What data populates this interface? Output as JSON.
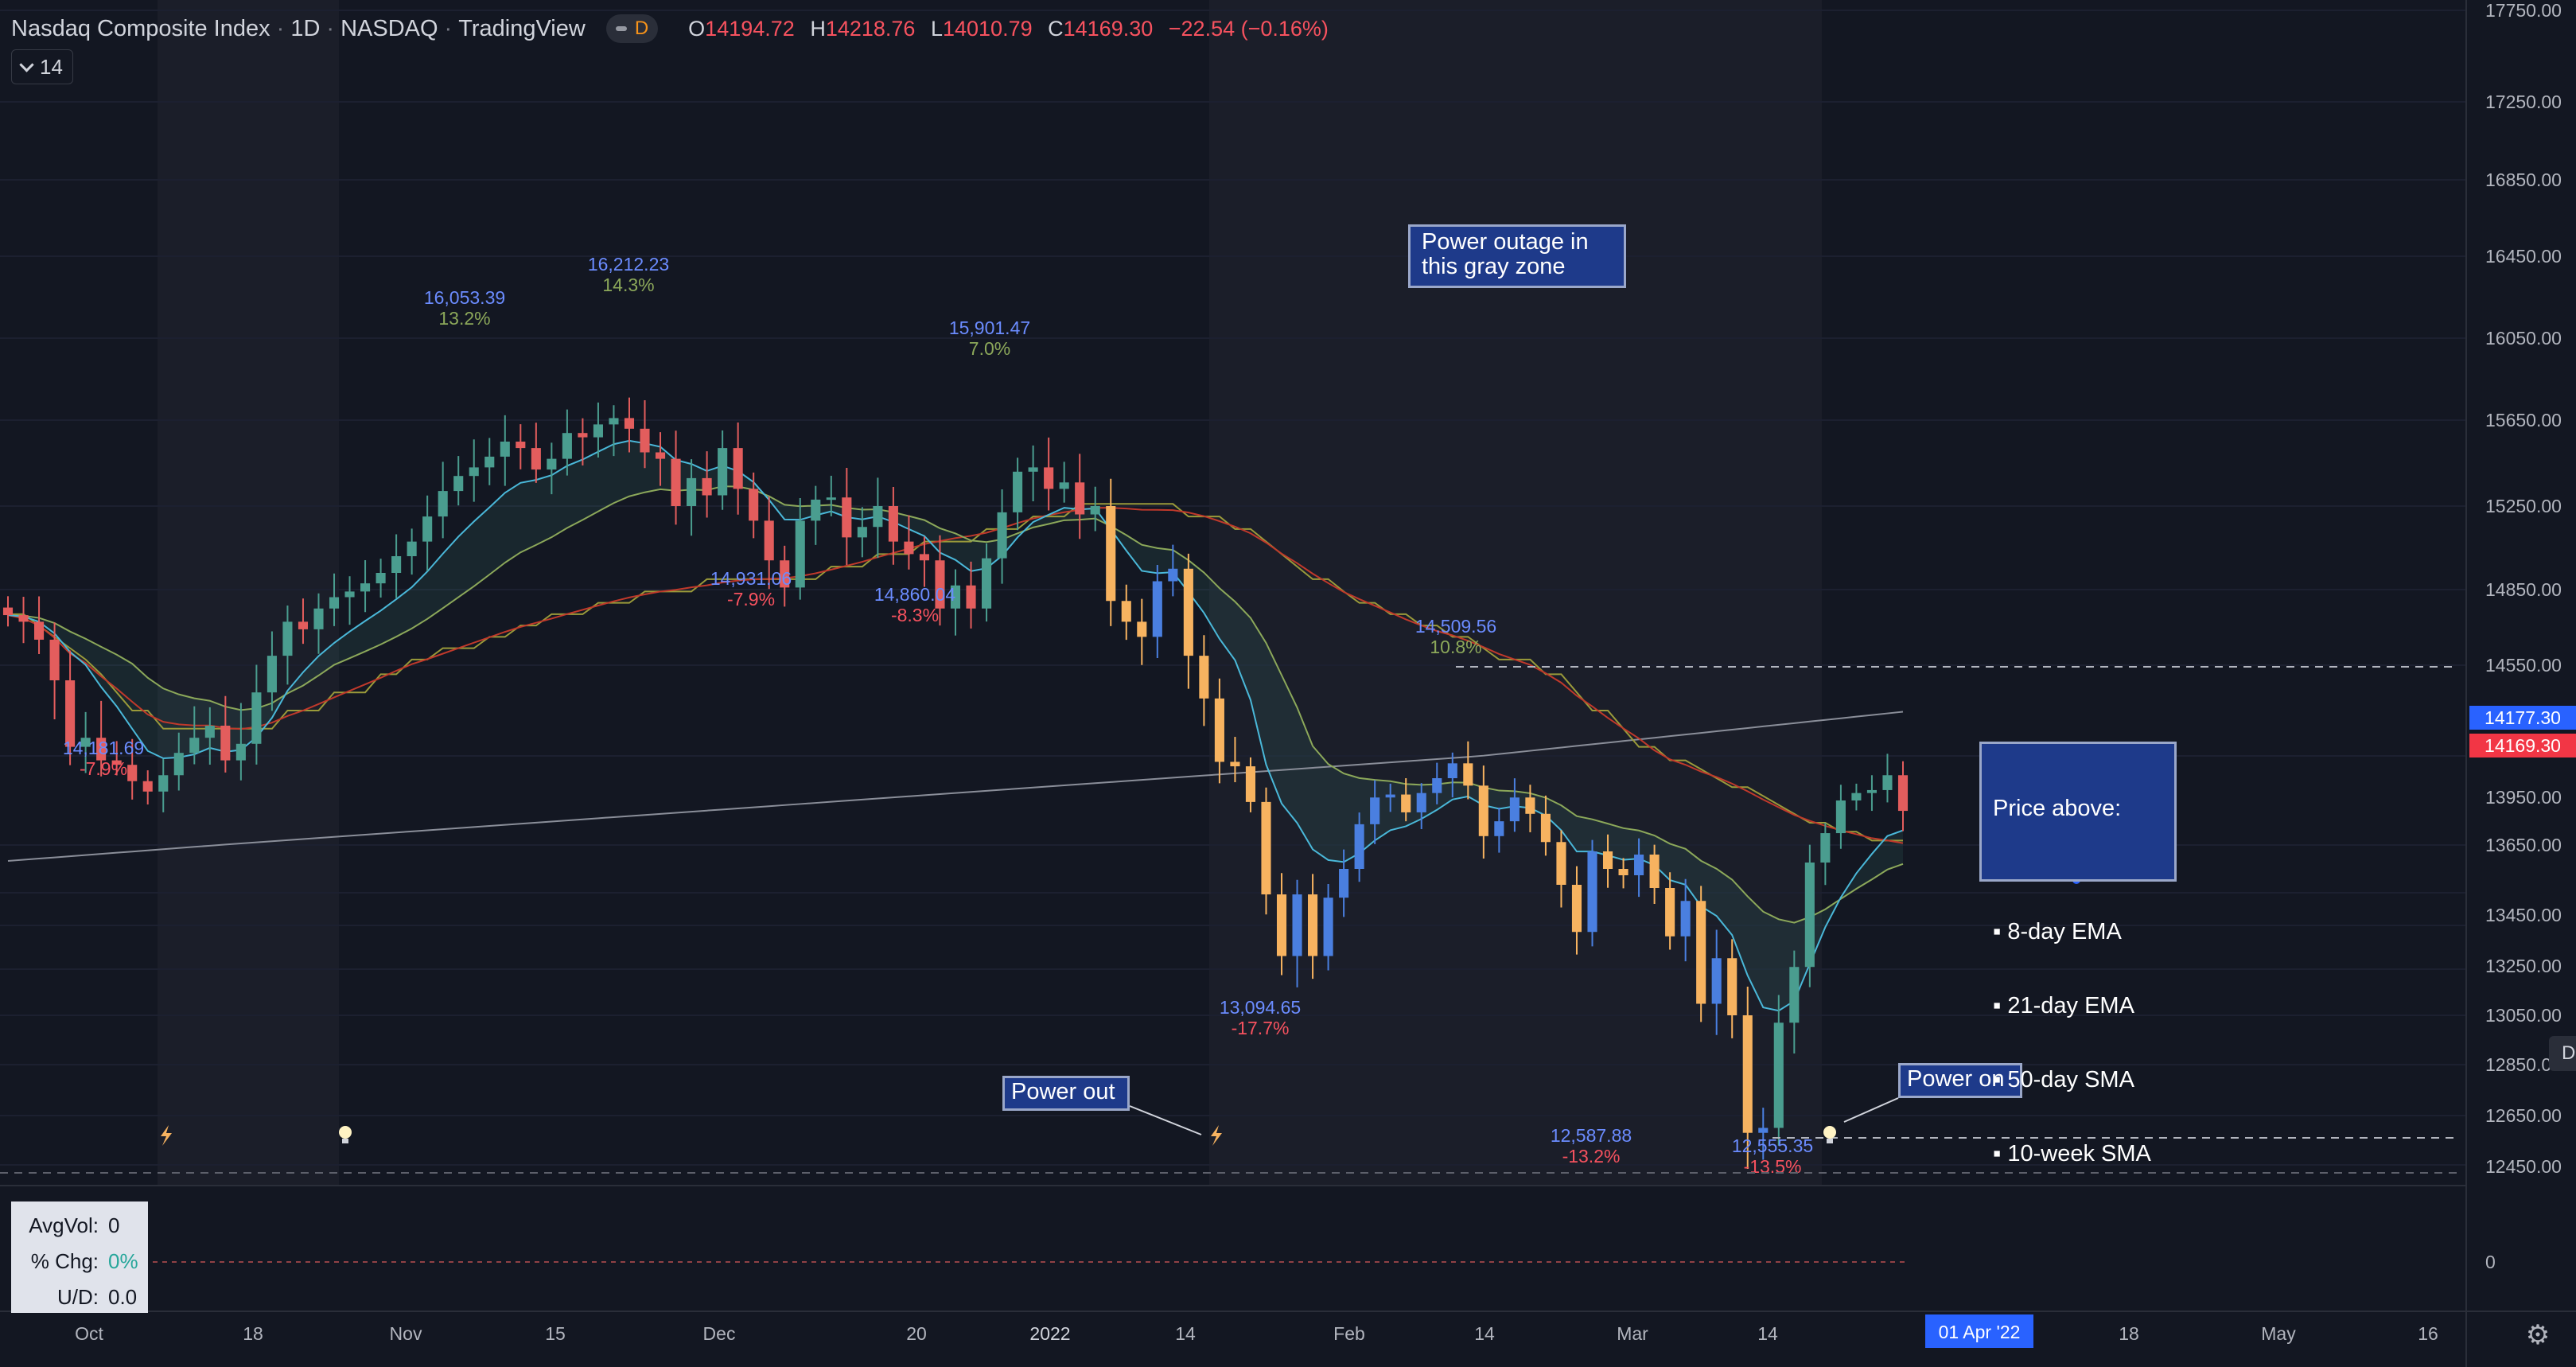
{
  "header": {
    "symbol": "Nasdaq Composite Index",
    "interval": "1D",
    "exchange": "NASDAQ",
    "source": "TradingView",
    "flag": "D",
    "o_label": "O",
    "o_value": "14194.72",
    "h_label": "H",
    "h_value": "14218.76",
    "l_label": "L",
    "l_value": "14010.79",
    "c_label": "C",
    "c_value": "14169.30",
    "change": "−22.54 (−0.16%)",
    "collapse_count": "14"
  },
  "colors": {
    "background": "#131722",
    "up_candle": "#4a9d8f",
    "down_candle": "#e35d5d",
    "blue_candle": "#4a7fe0",
    "orange_candle": "#f7b360",
    "ema8": "#4ab8d9",
    "ema21": "#8ca85a",
    "sma50": "#c0392b",
    "sma10w": "#9a9a3a",
    "sma200": "#8a8e99",
    "shade": "#1b1e29",
    "label_blue": "#6b8cff",
    "label_red": "#f7525f",
    "label_green": "#8ca85a",
    "note_bg": "#1e3a8a"
  },
  "annotations": {
    "outage_note": "Power outage in\nthis gray zone",
    "power_out": "Power out",
    "power_on": "Power on",
    "price_above_title": "Price above:",
    "price_above_items": [
      "8-day EMA",
      "21-day EMA",
      "50-day SMA",
      "10-week SMA"
    ]
  },
  "price_axis": {
    "ticks": [
      "17750.00",
      "17250.00",
      "16850.00",
      "16450.00",
      "16050.00",
      "15650.00",
      "15250.00",
      "14850.00",
      "14550.00",
      "13950.00",
      "13650.00",
      "13450.00",
      "13250.00",
      "13050.00",
      "12850.00",
      "12650.00",
      "12450.00"
    ],
    "last_price_1": "14177.30",
    "last_price_2": "14169.30",
    "volume_zero": "0",
    "dom": "DOM"
  },
  "time_axis": {
    "labels": [
      "Oct",
      "18",
      "Nov",
      "15",
      "Dec",
      "20",
      "2022",
      "14",
      "Feb",
      "14",
      "Mar",
      "14",
      "18",
      "May",
      "16"
    ],
    "cursor_label": "01 Apr '22"
  },
  "stats": {
    "avgvol_label": "AvgVol:",
    "avgvol_value": "0",
    "chg_label": "% Chg:",
    "chg_value": "0%",
    "ud_label": "U/D:",
    "ud_value": "0.0"
  },
  "chart_data": {
    "type": "candlestick",
    "title": "Nasdaq Composite Index",
    "ylim": [
      12400,
      17800
    ],
    "swing_labels": [
      {
        "price": "14,181.69",
        "pct": "-7.9%",
        "dir": "down"
      },
      {
        "price": "16,053.39",
        "pct": "13.2%",
        "dir": "up"
      },
      {
        "price": "16,212.23",
        "pct": "14.3%",
        "dir": "up"
      },
      {
        "price": "14,931.06",
        "pct": "-7.9%",
        "dir": "down"
      },
      {
        "price": "14,860.04",
        "pct": "-8.3%",
        "dir": "down"
      },
      {
        "price": "15,901.47",
        "pct": "7.0%",
        "dir": "up"
      },
      {
        "price": "13,094.65",
        "pct": "-17.7%",
        "dir": "down"
      },
      {
        "price": "14,509.56",
        "pct": "10.8%",
        "dir": "up"
      },
      {
        "price": "12,587.88",
        "pct": "-13.2%",
        "dir": "down"
      },
      {
        "price": "12,555.35",
        "pct": "-13.5%",
        "dir": "down"
      }
    ],
    "series": [
      {
        "name": "8-day EMA"
      },
      {
        "name": "21-day EMA"
      },
      {
        "name": "50-day SMA"
      },
      {
        "name": "10-week SMA"
      }
    ],
    "close": [
      15115,
      15080,
      14985,
      14800,
      14580,
      14610,
      14520,
      14490,
      14380,
      14310,
      14420,
      14560,
      14610,
      14650,
      14520,
      14590,
      14760,
      14900,
      15080,
      15040,
      15150,
      15210,
      15240,
      15280,
      15330,
      15410,
      15480,
      15600,
      15720,
      15790,
      15830,
      15880,
      15950,
      15920,
      15820,
      15870,
      15990,
      15970,
      16030,
      16060,
      16010,
      15900,
      15870,
      15650,
      15780,
      15700,
      15920,
      15730,
      15580,
      15390,
      15260,
      15580,
      15680,
      15690,
      15500,
      15550,
      15650,
      15480,
      15420,
      15390,
      15150,
      15270,
      15150,
      15400,
      15620,
      15810,
      15830,
      15730,
      15760,
      15610,
      15650,
      15190,
      15080,
      15000,
      15290,
      15350,
      14900,
      14740,
      14510,
      14480,
      14240,
      13640,
      13310,
      13640,
      13310,
      13620,
      13800,
      14090,
      14270,
      14290,
      14170,
      14300,
      14400,
      14500,
      14350,
      14010,
      14110,
      14270,
      14160,
      13970,
      13700,
      13420,
      13910,
      13800,
      13760,
      13890,
      13680,
      13400,
      13600,
      13100,
      13300,
      13050,
      12580,
      12600,
      13020,
      13260,
      13840,
      14030,
      14250,
      14300,
      14320,
      14420,
      14180
    ],
    "shaded_periods": [
      "Oct–Oct 26",
      "Jan 13–Mar 17"
    ]
  }
}
